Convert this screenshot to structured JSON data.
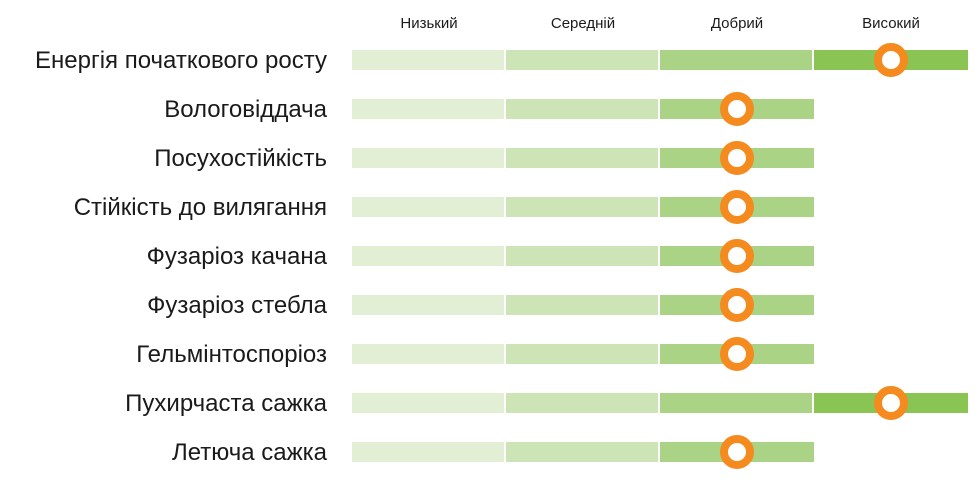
{
  "chart_data": {
    "type": "rating-scale",
    "levels": [
      "Низький",
      "Середній",
      "Добрий",
      "Високий"
    ],
    "traits": [
      {
        "label": "Енергія початкового росту",
        "value": 3.5
      },
      {
        "label": "Вологовіддача",
        "value": 2.5
      },
      {
        "label": "Посухостійкість",
        "value": 2.5
      },
      {
        "label": "Стійкість до вилягання",
        "value": 2.5
      },
      {
        "label": "Фузаріоз качана",
        "value": 2.5
      },
      {
        "label": "Фузаріоз стебла",
        "value": 2.5
      },
      {
        "label": "Гельмінтоспоріоз",
        "value": 2.5
      },
      {
        "label": "Пухирчаста сажка",
        "value": 3.5
      },
      {
        "label": "Летюча сажка",
        "value": 2.5
      }
    ],
    "colors": {
      "level_fills": [
        "#e3efd4",
        "#cce4b6",
        "#abd386",
        "#8ac453"
      ],
      "marker": "#f58a1f",
      "marker_center": "#ffffff"
    }
  }
}
